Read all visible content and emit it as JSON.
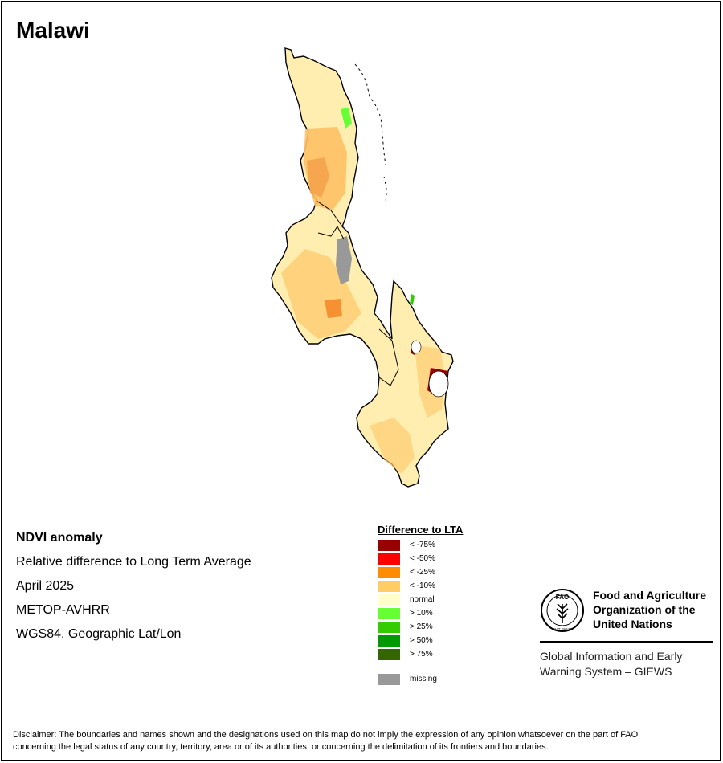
{
  "title": "Malawi",
  "info": {
    "heading": "NDVI anomaly",
    "line1": "Relative difference to Long Term Average",
    "date": "April 2025",
    "sensor": "METOP-AVHRR",
    "projection": "WGS84, Geographic Lat/Lon"
  },
  "legend": {
    "title": "Difference to LTA",
    "items": [
      {
        "label": "< -75%",
        "color": "#990000"
      },
      {
        "label": "< -50%",
        "color": "#ff0000"
      },
      {
        "label": "< -25%",
        "color": "#ff8c00"
      },
      {
        "label": "< -10%",
        "color": "#ffcc66"
      },
      {
        "label": "normal",
        "color": "#ffffcc"
      },
      {
        "label": "> 10%",
        "color": "#66ff33"
      },
      {
        "label": "> 25%",
        "color": "#33cc00"
      },
      {
        "label": "> 50%",
        "color": "#009900"
      },
      {
        "label": "> 75%",
        "color": "#336600"
      }
    ],
    "missing": {
      "label": "missing",
      "color": "#999999"
    }
  },
  "fao": {
    "name_line1": "Food and Agriculture",
    "name_line2": "Organization of the",
    "name_line3": "United Nations",
    "logo_text": "FAO",
    "logo_motto": "FIAT PANIS",
    "giews_line1": "Global Information and Early",
    "giews_line2": "Warning System – GIEWS"
  },
  "disclaimer": {
    "line1": "Disclaimer: The boundaries and names shown and the designations used on this map do not imply the expression of any opinion whatsoever on the part of FAO",
    "line2": "concerning the legal status of any country, territory, area or of its authorities, or concerning the delimitation of its frontiers and boundaries."
  }
}
